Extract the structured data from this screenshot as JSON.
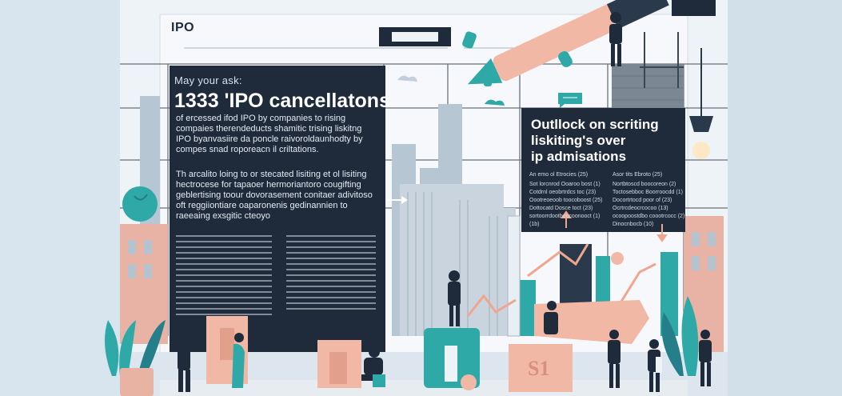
{
  "logo": "IPO",
  "left_panel": {
    "kicker": "May your ask:",
    "headline": "1333 'IPO cancellatons",
    "para1": [
      "of ercessed ifod IPO by  companies to rising",
      "compaies therendeducts shamitic trising liskitng",
      "IPO byanvasiire da poncle raivoroldaunhodty by",
      "compes snad roporeacn  il criltations."
    ],
    "para2": [
      "Th arcalito loing to or stecated lisiting et ol lisiting",
      "hectrocese for  tapaoer hermoriantoro cougifting",
      "geblertising toour dovorasement conitaer adivitoso",
      "oft reggiiontiare oaparonenis gedinannien to",
      "raeeaing exsgitic cteoyo"
    ]
  },
  "right_panel": {
    "title": [
      "Outllock on scriting",
      "liskiting's over",
      "ip admisations"
    ],
    "col1_header": "An emo ol Etrocies (25)",
    "col2_header": "Asor tits Ebroto (25)",
    "col1_lines": [
      "Sot lorcnrod Ooaroo bost (1)",
      "Cotdrnl oeobrtrdcs toc (23)",
      "Oootreoeoob toocoboost (25)",
      "Dottocatd Dosce toct (23)",
      "sortoorrdootboocoonooct (1)",
      "(1b)"
    ],
    "col2_lines": [
      "Nortbtoscd boocoreon (2)",
      "Toctosebboc Boorroocdd (1)",
      "Docortrtocd poor of (23)",
      "Ocrtrcdeocrcocoo (13)",
      "ocoopoostdbo coootrcocc (2)",
      "Dinocnbocb (10)"
    ]
  },
  "block_label": "S1",
  "colors": {
    "dark_panel": "#1f2b3a",
    "teal": "#2fa9a8",
    "peach": "#f2b8a6",
    "sky": "#c7d8e4"
  }
}
